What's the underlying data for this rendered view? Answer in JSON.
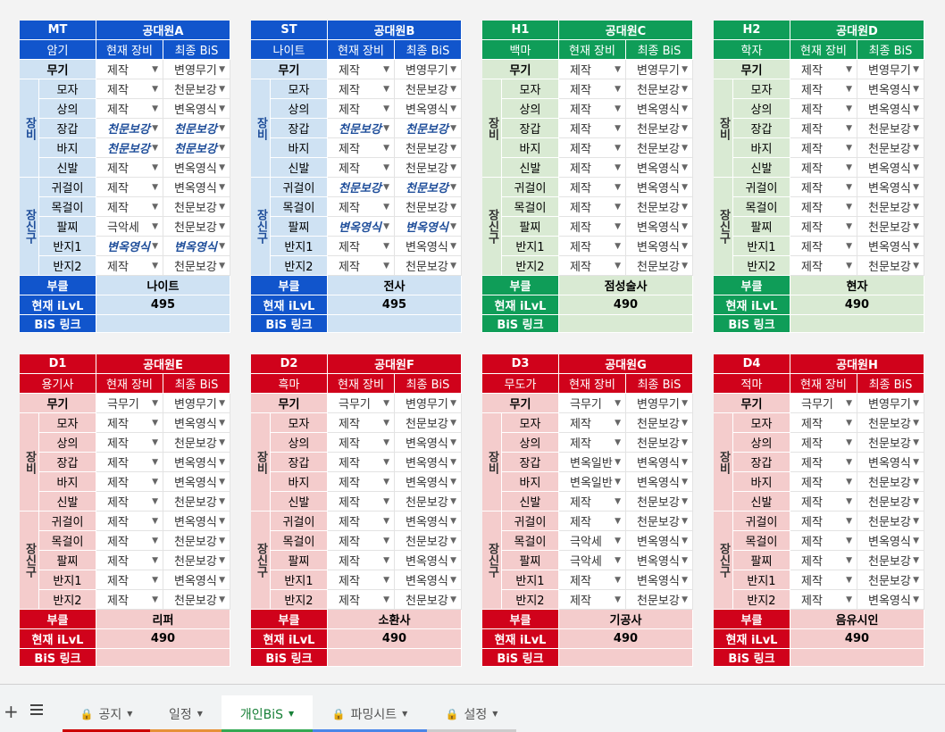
{
  "labels": {
    "current": "현재 장비",
    "final": "최종 BiS",
    "slots": [
      "무기",
      "모자",
      "상의",
      "장갑",
      "바지",
      "신발",
      "귀걸이",
      "목걸이",
      "팔찌",
      "반지1",
      "반지2"
    ],
    "armor": "장비",
    "accessory": "장신구",
    "job_class": "부클",
    "ilvl": "현재 iLvL",
    "bis_link": "BiS 링크"
  },
  "members": [
    {
      "role": "MT",
      "name": "공대원A",
      "job": "암기",
      "color": "#1155cc",
      "light": "#cfe2f3",
      "gear": [
        [
          "제작",
          "변영무기"
        ],
        [
          "제작",
          "천문보강"
        ],
        [
          "제작",
          "변옥영식"
        ],
        [
          "천문보강",
          "천문보강"
        ],
        [
          "천문보강",
          "천문보강"
        ],
        [
          "제작",
          "변옥영식"
        ],
        [
          "제작",
          "변옥영식"
        ],
        [
          "제작",
          "천문보강"
        ],
        [
          "극악세",
          "천문보강"
        ],
        [
          "변옥영식",
          "변옥영식"
        ],
        [
          "제작",
          "천문보강"
        ]
      ],
      "class": "나이트",
      "ilvl": 495
    },
    {
      "role": "ST",
      "name": "공대원B",
      "job": "나이트",
      "color": "#1155cc",
      "light": "#cfe2f3",
      "gear": [
        [
          "제작",
          "변영무기"
        ],
        [
          "제작",
          "천문보강"
        ],
        [
          "제작",
          "변옥영식"
        ],
        [
          "천문보강",
          "천문보강"
        ],
        [
          "제작",
          "천문보강"
        ],
        [
          "제작",
          "천문보강"
        ],
        [
          "천문보강",
          "천문보강"
        ],
        [
          "제작",
          "천문보강"
        ],
        [
          "변옥영식",
          "변옥영식"
        ],
        [
          "제작",
          "변옥영식"
        ],
        [
          "제작",
          "천문보강"
        ]
      ],
      "class": "전사",
      "ilvl": 495
    },
    {
      "role": "H1",
      "name": "공대원C",
      "job": "백마",
      "color": "#0f9d58",
      "light": "#d9ead3",
      "gear": [
        [
          "제작",
          "변영무기"
        ],
        [
          "제작",
          "천문보강"
        ],
        [
          "제작",
          "변옥영식"
        ],
        [
          "제작",
          "천문보강"
        ],
        [
          "제작",
          "천문보강"
        ],
        [
          "제작",
          "변옥영식"
        ],
        [
          "제작",
          "변옥영식"
        ],
        [
          "제작",
          "천문보강"
        ],
        [
          "제작",
          "변옥영식"
        ],
        [
          "제작",
          "변옥영식"
        ],
        [
          "제작",
          "천문보강"
        ]
      ],
      "class": "점성술사",
      "ilvl": 490
    },
    {
      "role": "H2",
      "name": "공대원D",
      "job": "학자",
      "color": "#0f9d58",
      "light": "#d9ead3",
      "gear": [
        [
          "제작",
          "변영무기"
        ],
        [
          "제작",
          "변옥영식"
        ],
        [
          "제작",
          "변옥영식"
        ],
        [
          "제작",
          "천문보강"
        ],
        [
          "제작",
          "천문보강"
        ],
        [
          "제작",
          "변옥영식"
        ],
        [
          "제작",
          "변옥영식"
        ],
        [
          "제작",
          "천문보강"
        ],
        [
          "제작",
          "천문보강"
        ],
        [
          "제작",
          "변옥영식"
        ],
        [
          "제작",
          "천문보강"
        ]
      ],
      "class": "현자",
      "ilvl": 490
    },
    {
      "role": "D1",
      "name": "공대원E",
      "job": "용기사",
      "color": "#d0021b",
      "light": "#f4cccc",
      "gear": [
        [
          "극무기",
          "변영무기"
        ],
        [
          "제작",
          "변옥영식"
        ],
        [
          "제작",
          "천문보강"
        ],
        [
          "제작",
          "변옥영식"
        ],
        [
          "제작",
          "변옥영식"
        ],
        [
          "제작",
          "천문보강"
        ],
        [
          "제작",
          "변옥영식"
        ],
        [
          "제작",
          "천문보강"
        ],
        [
          "제작",
          "천문보강"
        ],
        [
          "제작",
          "변옥영식"
        ],
        [
          "제작",
          "천문보강"
        ]
      ],
      "class": "리퍼",
      "ilvl": 490
    },
    {
      "role": "D2",
      "name": "공대원F",
      "job": "흑마",
      "color": "#d0021b",
      "light": "#f4cccc",
      "gear": [
        [
          "극무기",
          "변영무기"
        ],
        [
          "제작",
          "천문보강"
        ],
        [
          "제작",
          "변옥영식"
        ],
        [
          "제작",
          "변옥영식"
        ],
        [
          "제작",
          "변옥영식"
        ],
        [
          "제작",
          "천문보강"
        ],
        [
          "제작",
          "변옥영식"
        ],
        [
          "제작",
          "천문보강"
        ],
        [
          "제작",
          "변옥영식"
        ],
        [
          "제작",
          "변옥영식"
        ],
        [
          "제작",
          "천문보강"
        ]
      ],
      "class": "소환사",
      "ilvl": 490
    },
    {
      "role": "D3",
      "name": "공대원G",
      "job": "무도가",
      "color": "#d0021b",
      "light": "#f4cccc",
      "gear": [
        [
          "극무기",
          "변영무기"
        ],
        [
          "제작",
          "천문보강"
        ],
        [
          "제작",
          "천문보강"
        ],
        [
          "변옥일반",
          "변옥영식"
        ],
        [
          "변옥일반",
          "변옥영식"
        ],
        [
          "제작",
          "천문보강"
        ],
        [
          "제작",
          "천문보강"
        ],
        [
          "극악세",
          "변옥영식"
        ],
        [
          "극악세",
          "변옥영식"
        ],
        [
          "제작",
          "변옥영식"
        ],
        [
          "제작",
          "천문보강"
        ]
      ],
      "class": "기공사",
      "ilvl": 490
    },
    {
      "role": "D4",
      "name": "공대원H",
      "job": "적마",
      "color": "#d0021b",
      "light": "#f4cccc",
      "gear": [
        [
          "극무기",
          "변영무기"
        ],
        [
          "제작",
          "천문보강"
        ],
        [
          "제작",
          "천문보강"
        ],
        [
          "제작",
          "변옥영식"
        ],
        [
          "제작",
          "천문보강"
        ],
        [
          "제작",
          "천문보강"
        ],
        [
          "제작",
          "천문보강"
        ],
        [
          "제작",
          "변옥영식"
        ],
        [
          "제작",
          "천문보강"
        ],
        [
          "제작",
          "천문보강"
        ],
        [
          "제작",
          "변옥영식"
        ]
      ],
      "class": "음유시인",
      "ilvl": 490
    }
  ],
  "tabs": [
    {
      "label": "공지",
      "locked": true,
      "color": "#cc0000"
    },
    {
      "label": "일정",
      "locked": false,
      "color": "#e69138"
    },
    {
      "label": "개인BiS",
      "locked": false,
      "color": "#34a853"
    },
    {
      "label": "파밍시트",
      "locked": true,
      "color": "#4a86e8"
    },
    {
      "label": "설정",
      "locked": true,
      "color": "#cccccc"
    }
  ],
  "active_tab": 2
}
